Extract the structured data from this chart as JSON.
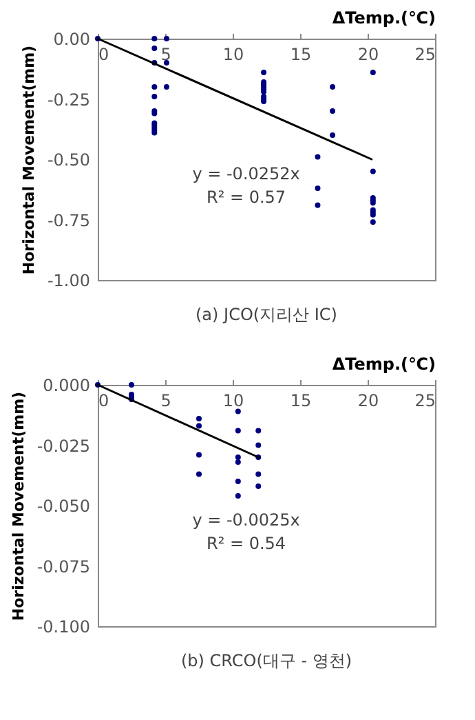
{
  "chart_data": [
    {
      "type": "scatter",
      "title": "(a) JCO(지리산 IC)",
      "xlabel": "ΔTemp.(℃)",
      "ylabel": "Horizontal Movement(mm)",
      "xlim": [
        0,
        25
      ],
      "xticks": [
        0,
        5,
        10,
        15,
        20,
        25
      ],
      "ylim": [
        -1,
        0
      ],
      "yticks": [
        {
          "value": 0,
          "label": "0.00"
        },
        {
          "value": -0.25,
          "label": "-0.25"
        },
        {
          "value": -0.5,
          "label": "-0.50"
        },
        {
          "value": -0.75,
          "label": "-0.75"
        },
        {
          "value": -1,
          "label": "-1.00"
        }
      ],
      "grid": false,
      "annotations": [
        "y = -0.0252x",
        "R² = 0.57"
      ],
      "series": [
        {
          "marker": "circle",
          "color": "#000080",
          "x": [
            0,
            4.2,
            4.2,
            4.2,
            4.2,
            4.2,
            4.2,
            4.2,
            4.2,
            4.2,
            4.2,
            4.2,
            4.2,
            5.1,
            5.1,
            5.1,
            12.3,
            12.3,
            12.3,
            12.3,
            12.3,
            12.3,
            12.3,
            12.3,
            12.3,
            16.3,
            16.3,
            16.3,
            17.4,
            17.4,
            17.4,
            20.4,
            20.4,
            20.4,
            20.4,
            20.4,
            20.4,
            20.4,
            20.4,
            20.4
          ],
          "values": [
            0,
            0,
            -0.04,
            -0.1,
            -0.2,
            -0.24,
            -0.3,
            -0.31,
            -0.35,
            -0.36,
            -0.37,
            -0.38,
            -0.39,
            0,
            -0.1,
            -0.2,
            -0.14,
            -0.18,
            -0.19,
            -0.2,
            -0.21,
            -0.22,
            -0.24,
            -0.25,
            -0.26,
            -0.49,
            -0.62,
            -0.69,
            -0.2,
            -0.3,
            -0.4,
            -0.14,
            -0.55,
            -0.66,
            -0.67,
            -0.68,
            -0.71,
            -0.72,
            -0.73,
            -0.76
          ]
        },
        {
          "type": "line",
          "marker": "none",
          "color": "#000000",
          "x": [
            0,
            20.3
          ],
          "values": [
            0,
            -0.5
          ]
        }
      ]
    },
    {
      "type": "scatter",
      "title": "(b) CRCO(대구 - 영천)",
      "xlabel": "ΔTemp.(℃)",
      "ylabel": "Horizontal Movement(mm)",
      "xlim": [
        0,
        25
      ],
      "xticks": [
        0,
        5,
        10,
        15,
        20,
        25
      ],
      "ylim": [
        -0.1,
        0
      ],
      "yticks": [
        {
          "value": 0,
          "label": "0.000"
        },
        {
          "value": -0.025,
          "label": "-0.025"
        },
        {
          "value": -0.05,
          "label": "-0.050"
        },
        {
          "value": -0.075,
          "label": "-0.075"
        },
        {
          "value": -0.1,
          "label": "-0.100"
        }
      ],
      "grid": false,
      "annotations": [
        "y = -0.0025x",
        "R² = 0.54"
      ],
      "series": [
        {
          "marker": "circle",
          "color": "#000080",
          "x": [
            0,
            2.5,
            2.5,
            2.5,
            2.5,
            7.5,
            7.5,
            7.5,
            7.5,
            10.4,
            10.4,
            10.4,
            10.4,
            10.4,
            10.4,
            11.9,
            11.9,
            11.9,
            11.9,
            11.9
          ],
          "values": [
            0,
            0,
            -0.004,
            -0.005,
            -0.006,
            -0.014,
            -0.017,
            -0.029,
            -0.037,
            -0.011,
            -0.019,
            -0.03,
            -0.032,
            -0.04,
            -0.046,
            -0.019,
            -0.025,
            -0.03,
            -0.037,
            -0.042
          ]
        },
        {
          "type": "line",
          "marker": "none",
          "color": "#000000",
          "x": [
            0,
            11.9
          ],
          "values": [
            0,
            -0.03
          ]
        }
      ]
    }
  ]
}
